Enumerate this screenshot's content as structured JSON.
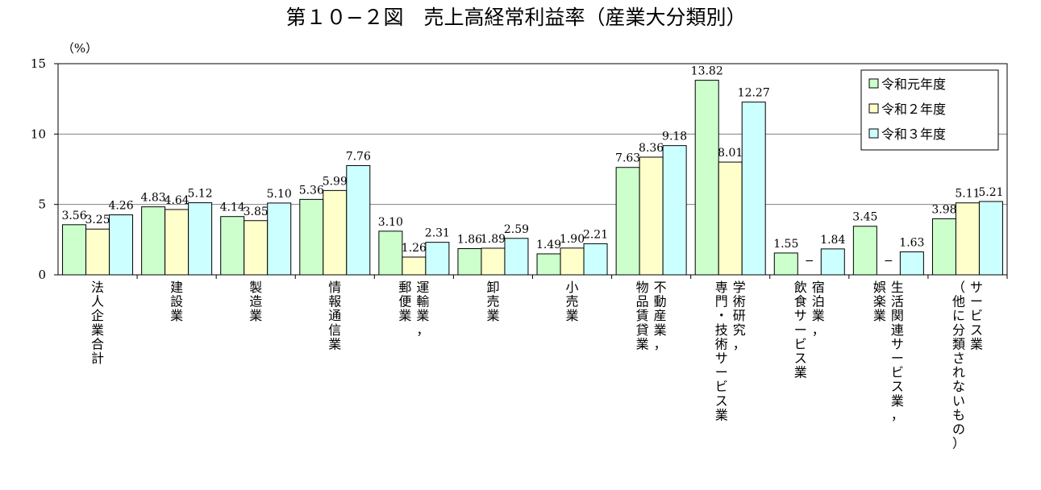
{
  "chart_data": {
    "type": "bar",
    "title": "第１０−２図　売上高経常利益率（産業大分類別）",
    "ylabel": "（%）",
    "ylim": [
      0,
      15
    ],
    "yticks": [
      0,
      5,
      10,
      15
    ],
    "grid": true,
    "legend_position": "top-right",
    "categories": [
      "法人企業合計",
      "建設業",
      "製造業",
      "情報通信業",
      "運輸業，郵便業",
      "卸売業",
      "小売業",
      "不動産業，物品賃貸業",
      "学術研究，専門・技術サービス業",
      "宿泊業，飲食サービス業",
      "生活関連サービス業，娯楽業",
      "サービス業（他に分類されないもの）"
    ],
    "category_lines": [
      [
        "法人企業合計"
      ],
      [
        "建設業"
      ],
      [
        "製造業"
      ],
      [
        "情報通信業"
      ],
      [
        "運輸業，",
        "郵便業"
      ],
      [
        "卸売業"
      ],
      [
        "小売業"
      ],
      [
        "不動産業，",
        "物品賃貸業"
      ],
      [
        "学術研究，",
        "専門・技術サービス業"
      ],
      [
        "宿泊業，",
        "飲食サービス業"
      ],
      [
        "生活関連サービス業，",
        "娯楽業"
      ],
      [
        "サービス業",
        "（他に分類されないもの）"
      ]
    ],
    "series": [
      {
        "name": "令和元年度",
        "color": "#ccffcc",
        "values": [
          3.56,
          4.83,
          4.14,
          5.36,
          3.1,
          1.86,
          1.49,
          7.63,
          13.82,
          1.55,
          3.45,
          3.98
        ],
        "labels": [
          "3.56",
          "4.83",
          "4.14",
          "5.36",
          "3.10",
          "1.86",
          "1.49",
          "7.63",
          "13.82",
          "1.55",
          "3.45",
          "3.98"
        ]
      },
      {
        "name": "令和２年度",
        "color": "#ffffcc",
        "values": [
          3.25,
          4.64,
          3.85,
          5.99,
          1.26,
          1.89,
          1.9,
          8.36,
          8.01,
          null,
          null,
          5.11
        ],
        "labels": [
          "3.25",
          "4.64",
          "3.85",
          "5.99",
          "1.26",
          "1.89",
          "1.90",
          "8.36",
          "8.01",
          "−",
          "−",
          "5.11"
        ]
      },
      {
        "name": "令和３年度",
        "color": "#ccffff",
        "values": [
          4.26,
          5.12,
          5.1,
          7.76,
          2.31,
          2.59,
          2.21,
          9.18,
          12.27,
          1.84,
          1.63,
          5.21
        ],
        "labels": [
          "4.26",
          "5.12",
          "5.10",
          "7.76",
          "2.31",
          "2.59",
          "2.21",
          "9.18",
          "12.27",
          "1.84",
          "1.63",
          "5.21"
        ]
      }
    ]
  }
}
